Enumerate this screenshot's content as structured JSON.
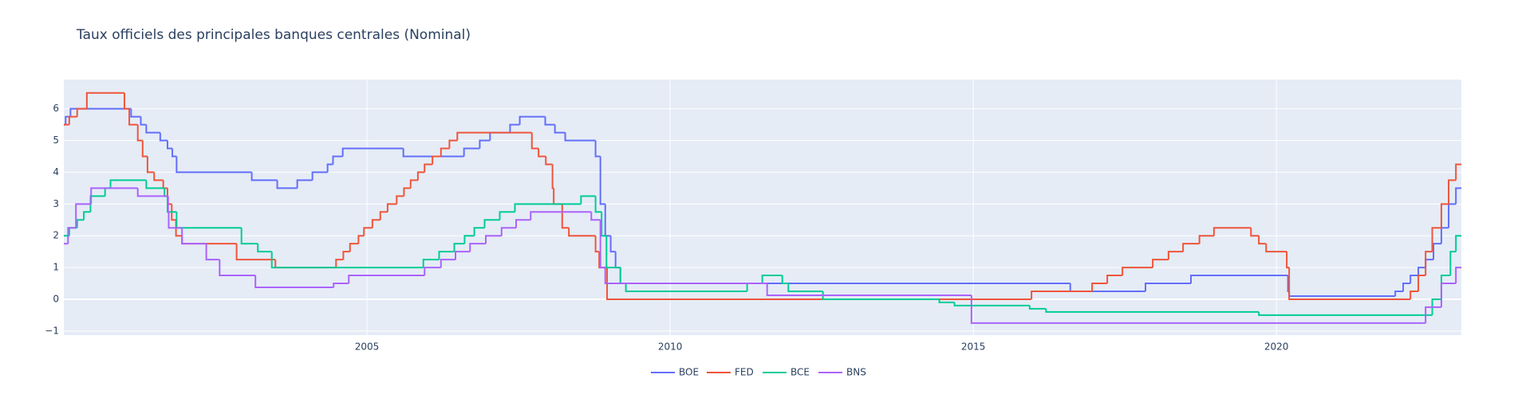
{
  "chart_data": {
    "type": "step-line",
    "title": "Taux officiels des principales banques centrales (Nominal)",
    "xlim": [
      2000.0,
      2023.05
    ],
    "xticks": [
      2005,
      2010,
      2015,
      2020
    ],
    "ylim": [
      -1.13,
      6.92
    ],
    "yticks": [
      {
        "value": -1,
        "label": "−1"
      },
      0,
      1,
      2,
      3,
      4,
      5,
      6
    ],
    "grid": true,
    "legend": "bottom",
    "series": [
      {
        "name": "BOE",
        "color": "#636efa",
        "x": [
          2000.0,
          2000.03,
          2000.11,
          2001.11,
          2001.27,
          2001.36,
          2001.59,
          2001.71,
          2001.79,
          2001.86,
          2003.1,
          2003.52,
          2003.85,
          2004.1,
          2004.35,
          2004.44,
          2004.6,
          2005.6,
          2006.6,
          2006.86,
          2007.03,
          2007.36,
          2007.52,
          2007.94,
          2008.1,
          2008.27,
          2008.77,
          2008.85,
          2008.93,
          2009.02,
          2009.1,
          2009.18,
          2016.6,
          2017.84,
          2018.59,
          2020.19,
          2020.21,
          2021.96,
          2022.09,
          2022.21,
          2022.34,
          2022.46,
          2022.59,
          2022.72,
          2022.84,
          2022.96,
          2023.05
        ],
        "values": [
          5.5,
          5.75,
          6,
          5.75,
          5.5,
          5.25,
          5,
          4.75,
          4.5,
          4,
          3.75,
          3.5,
          3.75,
          4,
          4.25,
          4.5,
          4.75,
          4.5,
          4.75,
          5,
          5.25,
          5.5,
          5.75,
          5.5,
          5.25,
          5,
          4.5,
          3,
          2,
          1.5,
          1,
          0.5,
          0.25,
          0.5,
          0.75,
          0.25,
          0.1,
          0.25,
          0.5,
          0.75,
          1,
          1.25,
          1.75,
          2.25,
          3,
          3.5,
          3.5
        ]
      },
      {
        "name": "FED",
        "color": "#EF553B",
        "x": [
          2000.0,
          2000.09,
          2000.22,
          2000.38,
          2001.0,
          2001.08,
          2001.22,
          2001.3,
          2001.38,
          2001.49,
          2001.64,
          2001.71,
          2001.78,
          2001.85,
          2001.95,
          2002.85,
          2003.49,
          2004.49,
          2004.61,
          2004.72,
          2004.86,
          2004.95,
          2005.09,
          2005.22,
          2005.34,
          2005.49,
          2005.61,
          2005.72,
          2005.84,
          2005.95,
          2006.08,
          2006.22,
          2006.36,
          2006.49,
          2007.72,
          2007.83,
          2007.95,
          2008.06,
          2008.08,
          2008.22,
          2008.33,
          2008.77,
          2008.83,
          2008.96,
          2015.96,
          2016.96,
          2017.21,
          2017.46,
          2017.96,
          2018.22,
          2018.46,
          2018.73,
          2018.97,
          2019.58,
          2019.71,
          2019.83,
          2020.17,
          2020.21,
          2022.21,
          2022.34,
          2022.46,
          2022.57,
          2022.72,
          2022.84,
          2022.96,
          2023.05
        ],
        "values": [
          5.5,
          5.75,
          6,
          6.5,
          6,
          5.5,
          5,
          4.5,
          4,
          3.75,
          3.5,
          3,
          2.5,
          2,
          1.75,
          1.25,
          1,
          1.25,
          1.5,
          1.75,
          2,
          2.25,
          2.5,
          2.75,
          3,
          3.25,
          3.5,
          3.75,
          4,
          4.25,
          4.5,
          4.75,
          5,
          5.25,
          4.75,
          4.5,
          4.25,
          3.5,
          3,
          2.25,
          2,
          1.5,
          1,
          0,
          0.25,
          0.5,
          0.75,
          1,
          1.25,
          1.5,
          1.75,
          2,
          2.25,
          2,
          1.75,
          1.5,
          1,
          0,
          0.25,
          0.75,
          1.5,
          2.25,
          3,
          3.75,
          4.25,
          4.25
        ]
      },
      {
        "name": "BCE",
        "color": "#00cc96",
        "x": [
          2000.0,
          2000.09,
          2000.22,
          2000.33,
          2000.44,
          2000.68,
          2000.77,
          2001.36,
          2001.66,
          2001.71,
          2001.86,
          2002.93,
          2003.2,
          2003.43,
          2005.93,
          2006.19,
          2006.44,
          2006.61,
          2006.77,
          2006.94,
          2007.19,
          2007.44,
          2008.53,
          2008.77,
          2008.87,
          2008.95,
          2009.18,
          2009.27,
          2011.27,
          2011.52,
          2011.85,
          2011.95,
          2012.52,
          2014.44,
          2014.69,
          2015.93,
          2016.2,
          2019.71,
          2022.57,
          2022.72,
          2022.87,
          2022.96,
          2023.05
        ],
        "values": [
          2,
          2.25,
          2.5,
          2.75,
          3.25,
          3.5,
          3.75,
          3.5,
          3.25,
          2.75,
          2.25,
          1.75,
          1.5,
          1,
          1.25,
          1.5,
          1.75,
          2,
          2.25,
          2.5,
          2.75,
          3,
          3.25,
          2.75,
          2,
          1,
          0.5,
          0.25,
          0.5,
          0.75,
          0.5,
          0.25,
          0,
          -0.1,
          -0.2,
          -0.3,
          -0.4,
          -0.5,
          0,
          0.75,
          1.5,
          2,
          2
        ]
      },
      {
        "name": "BNS",
        "color": "#ab63fa",
        "x": [
          2000.0,
          2000.07,
          2000.2,
          2000.45,
          2001.22,
          2001.72,
          2001.73,
          2001.95,
          2002.35,
          2002.57,
          2003.16,
          2004.45,
          2004.7,
          2005.95,
          2006.22,
          2006.46,
          2006.7,
          2006.96,
          2007.22,
          2007.46,
          2007.7,
          2008.7,
          2008.85,
          2008.93,
          2011.6,
          2014.97,
          2022.46,
          2022.72,
          2022.96,
          2023.05
        ],
        "values": [
          1.75,
          2.25,
          3,
          3.5,
          3.25,
          2.75,
          2.25,
          1.75,
          1.25,
          0.75,
          0.375,
          0.5,
          0.75,
          1,
          1.25,
          1.5,
          1.75,
          2,
          2.25,
          2.5,
          2.75,
          2.5,
          1,
          0.5,
          0.125,
          -0.75,
          -0.25,
          0.5,
          1,
          1
        ]
      }
    ]
  }
}
